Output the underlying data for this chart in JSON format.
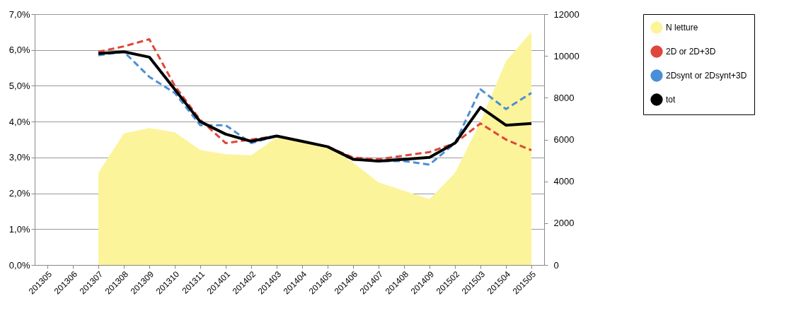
{
  "chart_data": {
    "type": "line",
    "categories": [
      "201305",
      "201306",
      "201307",
      "201308",
      "201309",
      "201310",
      "201311",
      "201401",
      "201402",
      "201403",
      "201404",
      "201405",
      "201406",
      "201407",
      "201408",
      "201409",
      "201502",
      "201503",
      "201504",
      "201505"
    ],
    "series": [
      {
        "name": "N letture",
        "type": "area",
        "axis": "y2",
        "color": "#fbf49a",
        "values": [
          null,
          null,
          4400,
          6300,
          6550,
          6350,
          5500,
          5300,
          5250,
          6100,
          5900,
          5700,
          4900,
          3950,
          3550,
          3150,
          4400,
          6850,
          9750,
          11150
        ]
      },
      {
        "name": "2D or 2D+3D",
        "color": "#e0463b",
        "line_style": "dashed",
        "values": [
          null,
          null,
          5.95,
          6.1,
          6.3,
          5.0,
          4.05,
          3.4,
          3.5,
          3.6,
          3.45,
          3.3,
          3.0,
          2.95,
          3.05,
          3.15,
          3.4,
          3.95,
          3.5,
          3.2
        ]
      },
      {
        "name": "2Dsynt or 2Dsynt+3D",
        "color": "#4a8fd6",
        "line_style": "dashed",
        "values": [
          null,
          null,
          5.85,
          5.95,
          5.25,
          4.8,
          3.9,
          3.9,
          3.4,
          3.6,
          3.45,
          3.3,
          2.95,
          2.9,
          2.9,
          2.8,
          3.4,
          4.9,
          4.35,
          4.8
        ]
      },
      {
        "name": "tot",
        "color": "#000000",
        "line_style": "solid",
        "values": [
          null,
          null,
          5.9,
          5.95,
          5.8,
          4.9,
          4.0,
          3.65,
          3.45,
          3.6,
          3.45,
          3.3,
          2.95,
          2.9,
          2.95,
          3.0,
          3.4,
          4.4,
          3.9,
          3.95
        ]
      }
    ],
    "ylim": [
      0,
      7
    ],
    "yticks": [
      {
        "value": 0,
        "label": "0,0%"
      },
      {
        "value": 1,
        "label": "1,0%"
      },
      {
        "value": 2,
        "label": "2,0%"
      },
      {
        "value": 3,
        "label": "3,0%"
      },
      {
        "value": 4,
        "label": "4,0%"
      },
      {
        "value": 5,
        "label": "5,0%"
      },
      {
        "value": 6,
        "label": "6,0%"
      },
      {
        "value": 7,
        "label": "7,0%"
      }
    ],
    "y2lim": [
      0,
      12000
    ],
    "y2ticks": [
      0,
      2000,
      4000,
      6000,
      8000,
      10000,
      12000
    ],
    "grid": "y",
    "legend": "right"
  }
}
